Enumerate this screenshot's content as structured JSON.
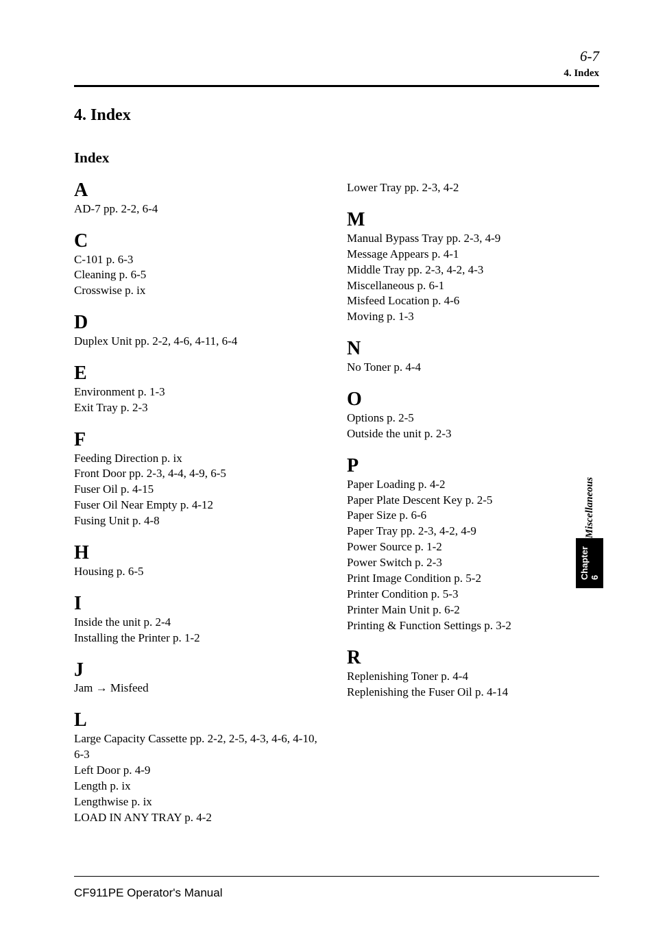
{
  "header": {
    "page_number": "6-7",
    "section_label": "4. Index"
  },
  "title": "4. Index",
  "subtitle": "Index",
  "left_column": [
    {
      "letter": "A",
      "entries": [
        "AD-7 pp. 2-2, 6-4"
      ]
    },
    {
      "letter": "C",
      "entries": [
        "C-101 p. 6-3",
        "Cleaning p. 6-5",
        "Crosswise p. ix"
      ]
    },
    {
      "letter": "D",
      "entries": [
        "Duplex Unit pp. 2-2, 4-6, 4-11, 6-4"
      ]
    },
    {
      "letter": "E",
      "entries": [
        "Environment p. 1-3",
        "Exit Tray p. 2-3"
      ]
    },
    {
      "letter": "F",
      "entries": [
        "Feeding Direction p. ix",
        "Front Door pp. 2-3, 4-4, 4-9, 6-5",
        "Fuser Oil p. 4-15",
        "Fuser Oil Near Empty p. 4-12",
        "Fusing Unit p. 4-8"
      ]
    },
    {
      "letter": "H",
      "entries": [
        "Housing p. 6-5"
      ]
    },
    {
      "letter": "I",
      "entries": [
        "Inside the unit p. 2-4",
        "Installing the Printer p. 1-2"
      ]
    },
    {
      "letter": "J",
      "entries": [
        "Jam → Misfeed"
      ]
    },
    {
      "letter": "L",
      "entries": [
        "Large Capacity Cassette pp. 2-2, 2-5, 4-3, 4-6, 4-10, 6-3",
        "Left Door p. 4-9",
        "Length p. ix",
        "Lengthwise p. ix",
        "LOAD IN ANY TRAY p. 4-2"
      ]
    }
  ],
  "right_column": [
    {
      "letter": "",
      "entries": [
        "Lower Tray pp. 2-3, 4-2"
      ]
    },
    {
      "letter": "M",
      "entries": [
        "Manual Bypass Tray pp. 2-3, 4-9",
        "Message Appears p. 4-1",
        "Middle Tray pp. 2-3, 4-2, 4-3",
        "Miscellaneous p. 6-1",
        "Misfeed Location p. 4-6",
        "Moving p. 1-3"
      ]
    },
    {
      "letter": "N",
      "entries": [
        "No Toner p. 4-4"
      ]
    },
    {
      "letter": "O",
      "entries": [
        "Options p. 2-5",
        "Outside the unit p. 2-3"
      ]
    },
    {
      "letter": "P",
      "entries": [
        "Paper Loading p. 4-2",
        "Paper Plate Descent Key p. 2-5",
        "Paper Size p. 6-6",
        "Paper Tray pp. 2-3, 4-2, 4-9",
        "Power Source p. 1-2",
        "Power Switch p. 2-3",
        "Print Image Condition p. 5-2",
        "Printer Condition p. 5-3",
        "Printer Main Unit p. 6-2",
        "Printing & Function Settings p. 3-2"
      ]
    },
    {
      "letter": "R",
      "entries": [
        "Replenishing Toner p. 4-4",
        "Replenishing the Fuser Oil p. 4-14"
      ]
    }
  ],
  "footer": "CF911PE Operator's Manual",
  "side_tab": {
    "misc": "Miscellaneous",
    "chapter": "Chapter 6"
  }
}
